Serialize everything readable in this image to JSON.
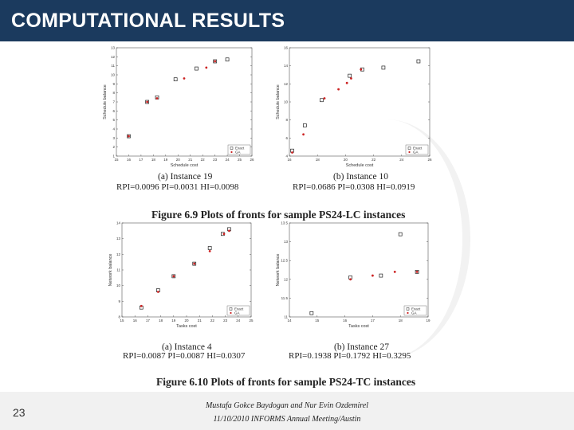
{
  "header": {
    "title": "COMPUTATIONAL RESULTS"
  },
  "figure69": {
    "caption": "Figure 6.9 Plots of fronts for sample PS24-LC instances",
    "panels": [
      {
        "caption": "(a) Instance 19",
        "metrics": "RPI=0.0096 PI=0.0031 HI=0.0098",
        "ylabel": "Schedule balance",
        "xlabel": "Schedule cost",
        "legend": [
          "Exact",
          "GA"
        ]
      },
      {
        "caption": "(b) Instance 10",
        "metrics": "RPI=0.0686 PI=0.0308 HI=0.0919",
        "ylabel": "Schedule balance",
        "xlabel": "Schedule cost",
        "legend": [
          "Exact",
          "GA"
        ]
      }
    ]
  },
  "figure610": {
    "caption": "Figure 6.10 Plots of fronts for sample PS24-TC instances",
    "panels": [
      {
        "caption": "(a) Instance 4",
        "metrics": "RPI=0.0087 PI=0.0087 HI=0.0307",
        "ylabel": "Network balance",
        "xlabel": "Tasks cost",
        "legend": [
          "Exact",
          "GA"
        ]
      },
      {
        "caption": "(b) Instance 27",
        "metrics": "RPI=0.1938 PI=0.1792 HI=0.3295",
        "ylabel": "Network balance",
        "xlabel": "Tasks cost",
        "legend": [
          "Exact",
          "GA"
        ]
      }
    ]
  },
  "chart_data": [
    {
      "type": "scatter",
      "title": "(a) Instance 19",
      "xlabel": "Schedule cost",
      "ylabel": "Schedule balance",
      "x_ticks": [
        "15",
        "16",
        "17",
        "18",
        "19",
        "20",
        "21",
        "22",
        "23",
        "24",
        "25",
        "26"
      ],
      "y_ticks": [
        "1",
        "2",
        "3",
        "4",
        "5",
        "6",
        "7",
        "8",
        "9",
        "10",
        "11",
        "12",
        "13"
      ],
      "xlim": [
        15,
        26
      ],
      "ylim": [
        1,
        13
      ],
      "legend": "bottom-right",
      "series": [
        {
          "name": "Exact",
          "marker": "square",
          "color": "#222222",
          "points": [
            [
              16,
              3.2
            ],
            [
              17.5,
              7
            ],
            [
              18.3,
              7.5
            ],
            [
              19.8,
              9.5
            ],
            [
              21.5,
              10.7
            ],
            [
              23,
              11.5
            ],
            [
              24,
              11.7
            ]
          ]
        },
        {
          "name": "GA",
          "marker": "dot",
          "color": "#cc2222",
          "points": [
            [
              16,
              3.2
            ],
            [
              17.5,
              7
            ],
            [
              18.3,
              7.4
            ],
            [
              20.5,
              9.6
            ],
            [
              22.3,
              10.8
            ],
            [
              23,
              11.5
            ]
          ]
        }
      ]
    },
    {
      "type": "scatter",
      "title": "(b) Instance 10",
      "xlabel": "Schedule cost",
      "ylabel": "Schedule balance",
      "x_ticks": [
        "16",
        "18",
        "20",
        "22",
        "24",
        "26"
      ],
      "y_ticks": [
        "4",
        "6",
        "8",
        "10",
        "12",
        "14",
        "16"
      ],
      "xlim": [
        16,
        26
      ],
      "ylim": [
        4,
        16
      ],
      "legend": "bottom-right",
      "series": [
        {
          "name": "Exact",
          "marker": "square",
          "color": "#222222",
          "points": [
            [
              16.2,
              4.6
            ],
            [
              17.1,
              7.4
            ],
            [
              18.3,
              10.2
            ],
            [
              20.3,
              12.9
            ],
            [
              21.2,
              13.6
            ],
            [
              22.7,
              13.8
            ],
            [
              25.2,
              14.5
            ]
          ]
        },
        {
          "name": "GA",
          "marker": "dot",
          "color": "#cc2222",
          "points": [
            [
              16.2,
              4.4
            ],
            [
              17,
              6.4
            ],
            [
              18.5,
              10.4
            ],
            [
              19.5,
              11.4
            ],
            [
              20.1,
              12.1
            ],
            [
              20.4,
              12.6
            ],
            [
              21.1,
              13.6
            ]
          ]
        }
      ]
    },
    {
      "type": "scatter",
      "title": "(a) Instance 4",
      "xlabel": "Tasks cost",
      "ylabel": "Network balance",
      "x_ticks": [
        "15",
        "16",
        "17",
        "18",
        "19",
        "20",
        "21",
        "22",
        "23",
        "24",
        "25"
      ],
      "y_ticks": [
        "8",
        "9",
        "10",
        "11",
        "12",
        "13",
        "14"
      ],
      "xlim": [
        15,
        25
      ],
      "ylim": [
        8,
        14
      ],
      "legend": "bottom-right",
      "series": [
        {
          "name": "Exact",
          "marker": "square",
          "color": "#222222",
          "points": [
            [
              16.5,
              8.6
            ],
            [
              17.8,
              9.7
            ],
            [
              19,
              10.6
            ],
            [
              20.6,
              11.4
            ],
            [
              21.8,
              12.4
            ],
            [
              22.8,
              13.3
            ],
            [
              23.3,
              13.6
            ]
          ]
        },
        {
          "name": "GA",
          "marker": "dot",
          "color": "#cc2222",
          "points": [
            [
              16.5,
              8.7
            ],
            [
              17.8,
              9.6
            ],
            [
              19,
              10.6
            ],
            [
              20.6,
              11.4
            ],
            [
              21.8,
              12.2
            ],
            [
              22.9,
              13.3
            ],
            [
              23.3,
              13.5
            ]
          ]
        }
      ]
    },
    {
      "type": "scatter",
      "title": "(b) Instance 27",
      "xlabel": "Tasks cost",
      "ylabel": "Network balance",
      "x_ticks": [
        "14",
        "15",
        "16",
        "17",
        "18",
        "19"
      ],
      "y_ticks": [
        "11",
        "11.5",
        "12",
        "12.5",
        "13",
        "13.5"
      ],
      "xlim": [
        14,
        19
      ],
      "ylim": [
        11,
        13.5
      ],
      "legend": "bottom-right",
      "series": [
        {
          "name": "Exact",
          "marker": "square",
          "color": "#222222",
          "points": [
            [
              14.8,
              11.1
            ],
            [
              16.2,
              12.05
            ],
            [
              17.3,
              12.1
            ],
            [
              18,
              13.2
            ],
            [
              18.6,
              12.2
            ]
          ]
        },
        {
          "name": "GA",
          "marker": "dot",
          "color": "#cc2222",
          "points": [
            [
              16.2,
              12.0
            ],
            [
              17,
              12.1
            ],
            [
              17.8,
              12.2
            ],
            [
              18.6,
              12.2
            ]
          ]
        }
      ]
    }
  ],
  "footer": {
    "page_number": "23",
    "authors": "Mustafa Gokce Baydogan and Nur Evin Ozdemirel",
    "event": "11/10/2010 INFORMS Annual Meeting/Austin"
  }
}
